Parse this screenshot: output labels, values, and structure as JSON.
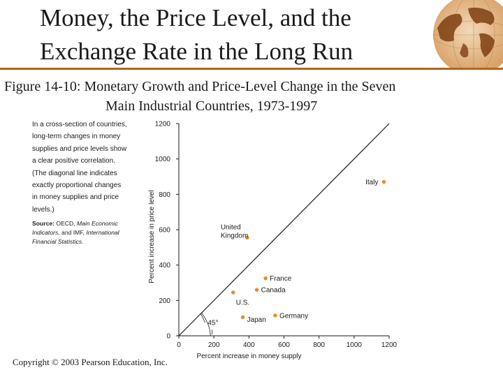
{
  "slide": {
    "title_line1": "Money, the Price Level, and the",
    "title_line2": "Exchange Rate in the Long Run"
  },
  "figure": {
    "label": "Figure 14-10",
    "caption_line1": ": Monetary Growth and Price-Level Change in the Seven",
    "caption_line2": "Main Industrial Countries, 1973-1997"
  },
  "note": {
    "lines": [
      "In a cross-section of countries,",
      "long-term changes in money",
      "supplies and price levels show",
      "a clear positive correlation.",
      "(The diagonal line indicates",
      "exactly proportional changes",
      "in money supplies and price",
      "levels.)"
    ]
  },
  "source": {
    "label": "Source:",
    "text1": "OECD,",
    "ital1": "Main Economic",
    "ital2": "Indicators,",
    "text2": "and IMF,",
    "ital3": "International",
    "ital4": "Financial Statistics."
  },
  "copyright": "Copyright © 2003 Pearson Education, Inc.",
  "colors": {
    "accent": "#b5651d",
    "points": "#e0913a",
    "axis": "#1a1a1a"
  },
  "chart_data": {
    "type": "scatter",
    "xlabel": "Percent increase in money supply",
    "ylabel": "Percent increase in price level",
    "xlim": [
      0,
      1200
    ],
    "ylim": [
      0,
      1200
    ],
    "xticks": [
      0,
      200,
      400,
      600,
      800,
      1000,
      1200
    ],
    "yticks": [
      0,
      200,
      400,
      600,
      800,
      1000,
      1200
    ],
    "grid": false,
    "diagonal_line": true,
    "angle_label": "45°",
    "points": [
      {
        "label": "Italy",
        "x": 1170,
        "y": 870
      },
      {
        "label": "United Kingdom",
        "x": 390,
        "y": 555
      },
      {
        "label": "France",
        "x": 495,
        "y": 325
      },
      {
        "label": "Canada",
        "x": 445,
        "y": 260
      },
      {
        "label": "U.S.",
        "x": 310,
        "y": 245
      },
      {
        "label": "Japan",
        "x": 365,
        "y": 105
      },
      {
        "label": "Germany",
        "x": 550,
        "y": 115
      }
    ]
  }
}
